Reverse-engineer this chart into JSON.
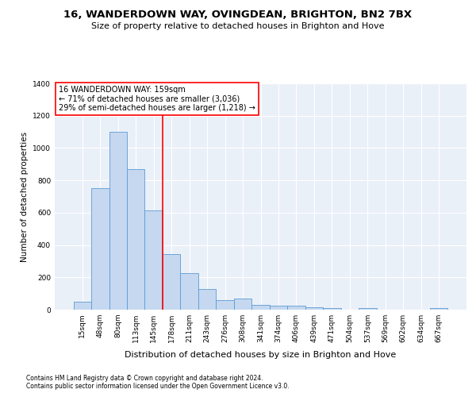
{
  "title1": "16, WANDERDOWN WAY, OVINGDEAN, BRIGHTON, BN2 7BX",
  "title2": "Size of property relative to detached houses in Brighton and Hove",
  "xlabel": "Distribution of detached houses by size in Brighton and Hove",
  "ylabel": "Number of detached properties",
  "footnote1": "Contains HM Land Registry data © Crown copyright and database right 2024.",
  "footnote2": "Contains public sector information licensed under the Open Government Licence v3.0.",
  "annotation_line1": "16 WANDERDOWN WAY: 159sqm",
  "annotation_line2": "← 71% of detached houses are smaller (3,036)",
  "annotation_line3": "29% of semi-detached houses are larger (1,218) →",
  "bar_labels": [
    "15sqm",
    "48sqm",
    "80sqm",
    "113sqm",
    "145sqm",
    "178sqm",
    "211sqm",
    "243sqm",
    "276sqm",
    "308sqm",
    "341sqm",
    "374sqm",
    "406sqm",
    "439sqm",
    "471sqm",
    "504sqm",
    "537sqm",
    "569sqm",
    "602sqm",
    "634sqm",
    "667sqm"
  ],
  "bar_values": [
    50,
    750,
    1100,
    870,
    615,
    345,
    225,
    130,
    60,
    70,
    30,
    25,
    25,
    15,
    10,
    0,
    10,
    0,
    0,
    0,
    10
  ],
  "bar_color": "#c5d8f0",
  "bar_edge_color": "#5b9bd5",
  "vline_color": "red",
  "vline_position": 4.5,
  "background_color": "#eaf0f8",
  "ylim_max": 1400,
  "yticks": [
    0,
    200,
    400,
    600,
    800,
    1000,
    1200,
    1400
  ],
  "title1_fontsize": 9.5,
  "title2_fontsize": 8,
  "ylabel_fontsize": 7.5,
  "xlabel_fontsize": 8,
  "tick_fontsize": 6.5,
  "footnote_fontsize": 5.5,
  "annotation_fontsize": 7
}
